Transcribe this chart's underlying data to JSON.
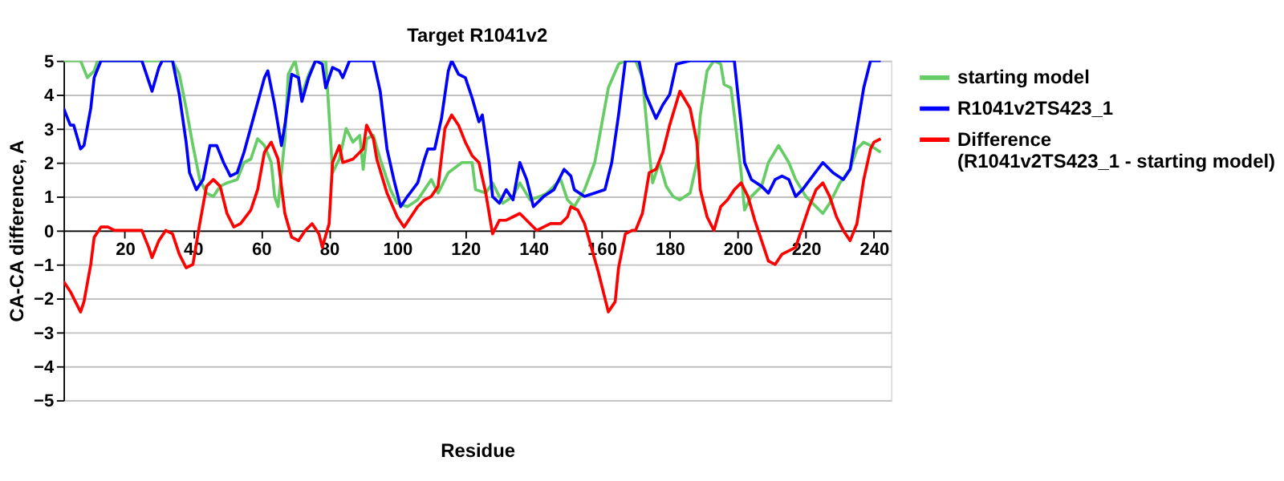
{
  "chart_data": {
    "type": "line",
    "title": "Target R1041v2",
    "xlabel": "Residue",
    "ylabel": "CA-CA difference, A",
    "xlim": [
      2,
      245
    ],
    "xticks": [
      20,
      40,
      60,
      80,
      100,
      120,
      140,
      160,
      180,
      200,
      220,
      240
    ],
    "ylim": [
      -5,
      5
    ],
    "yticks": [
      -5,
      -4,
      -3,
      -2,
      -1,
      0,
      1,
      2,
      3,
      4,
      5
    ],
    "grid": "y",
    "legend": "top right",
    "series": [
      {
        "name": "starting model",
        "color": "#66cc66",
        "x": [
          2,
          7,
          9,
          11,
          12,
          34,
          36,
          38,
          40,
          42,
          44,
          46,
          48,
          50,
          53,
          55,
          57,
          59,
          61,
          63,
          64,
          65,
          67,
          68,
          70,
          72,
          74,
          76,
          79,
          80,
          81,
          83,
          85,
          87,
          89,
          90,
          91,
          93,
          95,
          98,
          100,
          103,
          106,
          108,
          110,
          112,
          115,
          119,
          122,
          123,
          126,
          128,
          131,
          134,
          136,
          139,
          142,
          144,
          148,
          150,
          152,
          155,
          158,
          160,
          162,
          165,
          167,
          170,
          172,
          174,
          175,
          177,
          179,
          181,
          183,
          186,
          188,
          189,
          191,
          193,
          195,
          196,
          198,
          199,
          201,
          202,
          204,
          207,
          209,
          212,
          215,
          217,
          220,
          223,
          225,
          227,
          230,
          233,
          235,
          237,
          239,
          242
        ],
        "values": [
          5,
          5,
          4.5,
          4.7,
          5,
          5,
          4.6,
          3.6,
          2.5,
          1.5,
          1.1,
          1.0,
          1.3,
          1.4,
          1.5,
          2.0,
          2.1,
          2.7,
          2.5,
          2.0,
          1.0,
          0.7,
          2.7,
          4.6,
          5,
          4.0,
          4.6,
          5,
          5,
          3.4,
          1.7,
          2.1,
          3.0,
          2.6,
          2.8,
          1.8,
          2.7,
          2.8,
          2.1,
          1.2,
          0.8,
          0.7,
          0.9,
          1.2,
          1.5,
          1.1,
          1.7,
          2.0,
          2.0,
          1.2,
          1.1,
          1.4,
          0.8,
          1.0,
          1.4,
          0.9,
          1.0,
          1.1,
          1.5,
          0.9,
          0.7,
          1.2,
          2.0,
          3.1,
          4.2,
          4.9,
          5,
          5,
          4.5,
          2.3,
          1.4,
          2.0,
          1.3,
          1.0,
          0.9,
          1.1,
          2.0,
          3.4,
          4.7,
          5,
          4.9,
          4.3,
          4.2,
          3.4,
          1.7,
          0.6,
          1.0,
          1.3,
          2.0,
          2.5,
          2.0,
          1.5,
          1.0,
          0.7,
          0.5,
          0.8,
          1.4,
          1.8,
          2.4,
          2.6,
          2.5,
          2.3
        ]
      },
      {
        "name": "R1041v2TS423_1",
        "color": "#0000ff",
        "x": [
          2,
          4,
          5,
          7,
          8,
          10,
          11,
          13,
          25,
          26,
          28,
          30,
          31,
          34,
          36,
          38,
          39,
          41,
          43,
          45,
          47,
          49,
          51,
          53,
          55,
          58,
          61,
          62,
          64,
          66,
          67,
          69,
          71,
          72,
          74,
          76,
          78,
          79,
          81,
          83,
          84,
          86,
          93,
          95,
          97,
          99,
          101,
          103,
          106,
          108,
          109,
          111,
          113,
          115,
          116,
          118,
          120,
          122,
          124,
          125,
          127,
          128,
          130,
          132,
          134,
          136,
          138,
          140,
          143,
          146,
          149,
          151,
          152,
          155,
          158,
          161,
          163,
          165,
          167,
          171,
          173,
          176,
          178,
          180,
          182,
          186,
          199,
          201,
          202,
          204,
          207,
          209,
          211,
          213,
          215,
          217,
          219,
          222,
          225,
          228,
          231,
          233,
          235,
          237,
          239,
          242
        ],
        "values": [
          3.6,
          3.1,
          3.1,
          2.4,
          2.5,
          3.6,
          4.5,
          5,
          5,
          4.7,
          4.1,
          4.8,
          5,
          5,
          4.0,
          2.6,
          1.7,
          1.2,
          1.5,
          2.5,
          2.5,
          2.0,
          1.6,
          1.7,
          2.3,
          3.4,
          4.5,
          4.7,
          3.7,
          2.5,
          3.1,
          4.6,
          4.5,
          3.8,
          4.5,
          5,
          4.9,
          4.2,
          4.8,
          4.7,
          4.5,
          5,
          5,
          4.1,
          2.4,
          1.5,
          0.7,
          1.0,
          1.4,
          2.1,
          2.4,
          2.4,
          3.3,
          4.7,
          5,
          4.6,
          4.5,
          3.9,
          3.2,
          3.4,
          2.0,
          1.0,
          0.8,
          1.2,
          0.9,
          2.0,
          1.5,
          0.7,
          1.0,
          1.2,
          1.8,
          1.6,
          1.2,
          1.0,
          1.1,
          1.2,
          2.0,
          3.4,
          5,
          5,
          4.0,
          3.3,
          3.7,
          4.0,
          4.9,
          5,
          5,
          3.1,
          2.0,
          1.5,
          1.3,
          1.1,
          1.5,
          1.6,
          1.5,
          1.0,
          1.2,
          1.6,
          2.0,
          1.7,
          1.5,
          1.8,
          3.0,
          4.2,
          5,
          5
        ]
      },
      {
        "name": "Difference (R1041v2TS423_1 - starting model)",
        "color": "#ff0000",
        "x": [
          2,
          4,
          7,
          8,
          10,
          11,
          13,
          15,
          17,
          25,
          27,
          28,
          30,
          32,
          34,
          36,
          38,
          40,
          42,
          44,
          46,
          48,
          50,
          52,
          54,
          57,
          59,
          61,
          63,
          65,
          67,
          69,
          71,
          73,
          75,
          77,
          78,
          80,
          81,
          83,
          84,
          87,
          90,
          91,
          93,
          94,
          97,
          100,
          102,
          104,
          106,
          108,
          110,
          112,
          114,
          116,
          118,
          120,
          122,
          124,
          126,
          128,
          130,
          132,
          134,
          136,
          138,
          141,
          143,
          145,
          148,
          150,
          151,
          153,
          155,
          157,
          159,
          161,
          162,
          164,
          165,
          167,
          169,
          170,
          172,
          174,
          176,
          178,
          180,
          183,
          186,
          188,
          189,
          191,
          193,
          195,
          197,
          199,
          201,
          203,
          205,
          207,
          209,
          211,
          213,
          215,
          217,
          219,
          221,
          223,
          225,
          227,
          229,
          231,
          233,
          235,
          237,
          239,
          240,
          242
        ],
        "values": [
          -1.5,
          -1.8,
          -2.4,
          -2.1,
          -1.0,
          -0.2,
          0.1,
          0.1,
          0,
          0,
          -0.5,
          -0.8,
          -0.3,
          0,
          -0.1,
          -0.7,
          -1.1,
          -1.0,
          0.2,
          1.3,
          1.5,
          1.3,
          0.5,
          0.1,
          0.2,
          0.6,
          1.2,
          2.3,
          2.6,
          2.1,
          0.5,
          -0.2,
          -0.3,
          0,
          0.2,
          -0.1,
          -0.5,
          0.2,
          2.0,
          2.5,
          2.0,
          2.1,
          2.4,
          3.1,
          2.7,
          2.1,
          1.1,
          0.4,
          0.1,
          0.4,
          0.7,
          0.9,
          1.0,
          1.3,
          3.0,
          3.4,
          3.1,
          2.6,
          2.2,
          2.0,
          1.1,
          -0.1,
          0.3,
          0.3,
          0.4,
          0.5,
          0.3,
          0,
          0.1,
          0.2,
          0.2,
          0.4,
          0.7,
          0.6,
          0.2,
          -0.5,
          -1.2,
          -2.0,
          -2.4,
          -2.1,
          -1.1,
          -0.1,
          0,
          0,
          0.5,
          1.7,
          1.8,
          2.3,
          3.1,
          4.1,
          3.6,
          2.6,
          1.2,
          0.4,
          0,
          0.7,
          0.9,
          1.2,
          1.4,
          1.0,
          0.3,
          -0.3,
          -0.9,
          -1.0,
          -0.7,
          -0.6,
          -0.5,
          0.1,
          0.7,
          1.2,
          1.4,
          1.0,
          0.4,
          0,
          -0.3,
          0.2,
          1.5,
          2.4,
          2.6,
          2.7
        ]
      }
    ]
  }
}
